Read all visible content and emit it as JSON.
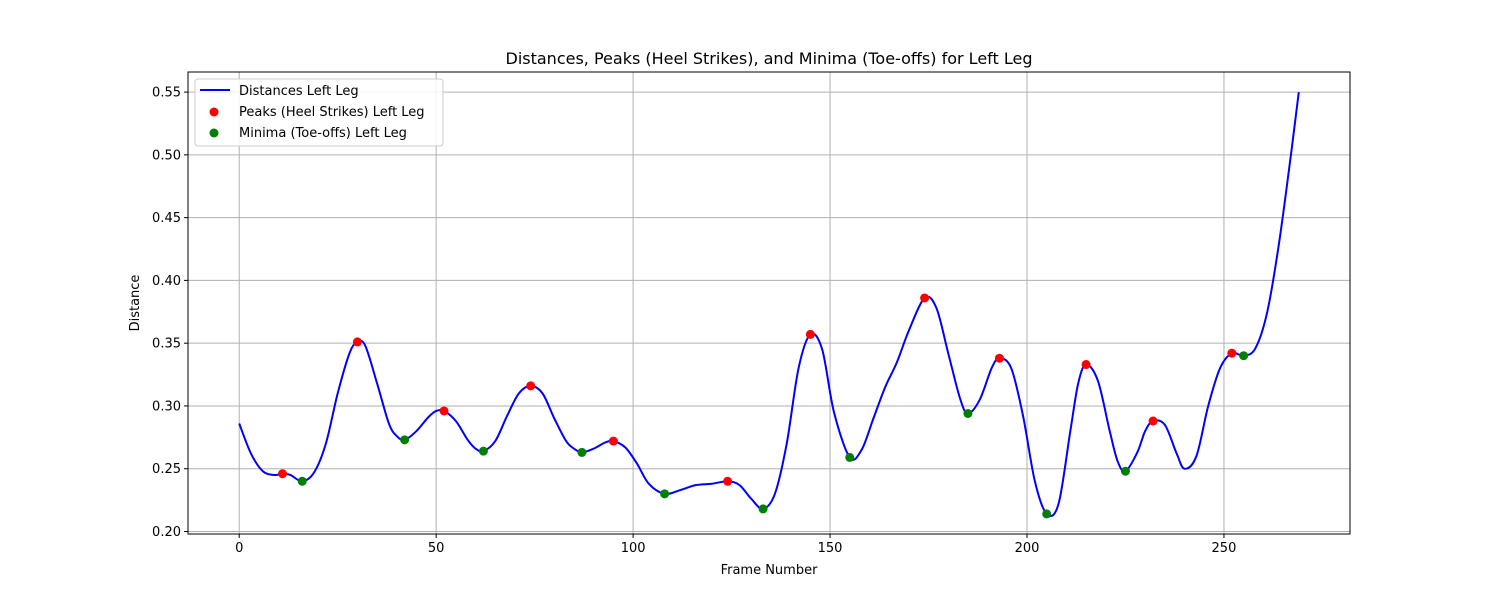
{
  "chart_data": {
    "type": "line",
    "title": "Distances, Peaks (Heel Strikes), and Minima (Toe-offs) for Left Leg",
    "xlabel": "Frame Number",
    "ylabel": "Distance",
    "xlim": [
      -13,
      282
    ],
    "ylim": [
      0.198,
      0.566
    ],
    "xticks": [
      0,
      50,
      100,
      150,
      200,
      250
    ],
    "yticks": [
      0.2,
      0.25,
      0.3,
      0.35,
      0.4,
      0.45,
      0.5,
      0.55
    ],
    "xtick_labels": [
      "0",
      "50",
      "100",
      "150",
      "200",
      "250"
    ],
    "ytick_labels": [
      "0.20",
      "0.25",
      "0.30",
      "0.35",
      "0.40",
      "0.45",
      "0.50",
      "0.55"
    ],
    "grid": true,
    "legend_position": "top-left",
    "colors": {
      "line": "#0000ff",
      "peaks": "#ff0000",
      "minima": "#008000",
      "grid": "#b0b0b0"
    },
    "series": [
      {
        "name": "Distances Left Leg",
        "kind": "line",
        "x": [
          0,
          3,
          6,
          9,
          11,
          13,
          16,
          19,
          22,
          25,
          28,
          30,
          32,
          35,
          38,
          40,
          42,
          45,
          48,
          50,
          52,
          55,
          58,
          60,
          62,
          65,
          68,
          71,
          74,
          77,
          80,
          83,
          85,
          87,
          90,
          93,
          95,
          98,
          101,
          104,
          108,
          112,
          116,
          120,
          124,
          127,
          130,
          133,
          136,
          139,
          142,
          145,
          148,
          151,
          155,
          158,
          161,
          164,
          167,
          170,
          174,
          177,
          180,
          183,
          185,
          188,
          191,
          193,
          196,
          199,
          202,
          205,
          208,
          211,
          213,
          215,
          218,
          221,
          223,
          225,
          228,
          230,
          232,
          235,
          238,
          240,
          243,
          246,
          249,
          252,
          255,
          258,
          261,
          264,
          267,
          269
        ],
        "values": [
          0.286,
          0.262,
          0.248,
          0.245,
          0.246,
          0.245,
          0.24,
          0.247,
          0.27,
          0.31,
          0.342,
          0.351,
          0.348,
          0.318,
          0.286,
          0.276,
          0.273,
          0.28,
          0.291,
          0.296,
          0.296,
          0.288,
          0.273,
          0.266,
          0.264,
          0.272,
          0.292,
          0.31,
          0.316,
          0.31,
          0.29,
          0.272,
          0.266,
          0.263,
          0.266,
          0.271,
          0.272,
          0.267,
          0.254,
          0.238,
          0.23,
          0.233,
          0.237,
          0.238,
          0.24,
          0.237,
          0.226,
          0.218,
          0.23,
          0.27,
          0.33,
          0.357,
          0.345,
          0.295,
          0.259,
          0.265,
          0.29,
          0.315,
          0.335,
          0.36,
          0.386,
          0.378,
          0.342,
          0.306,
          0.294,
          0.305,
          0.33,
          0.338,
          0.33,
          0.292,
          0.24,
          0.214,
          0.222,
          0.28,
          0.318,
          0.333,
          0.32,
          0.28,
          0.256,
          0.248,
          0.263,
          0.28,
          0.288,
          0.285,
          0.262,
          0.25,
          0.26,
          0.3,
          0.33,
          0.342,
          0.34,
          0.346,
          0.375,
          0.43,
          0.5,
          0.55
        ]
      },
      {
        "name": "Peaks (Heel Strikes) Left Leg",
        "kind": "scatter",
        "x": [
          11,
          30,
          52,
          74,
          95,
          124,
          145,
          174,
          193,
          215,
          232,
          252
        ],
        "values": [
          0.246,
          0.351,
          0.296,
          0.316,
          0.272,
          0.24,
          0.357,
          0.386,
          0.338,
          0.333,
          0.288,
          0.342
        ]
      },
      {
        "name": "Minima (Toe-offs) Left Leg",
        "kind": "scatter",
        "x": [
          16,
          42,
          62,
          87,
          108,
          133,
          155,
          185,
          205,
          225,
          255
        ],
        "values": [
          0.24,
          0.273,
          0.264,
          0.263,
          0.23,
          0.218,
          0.259,
          0.294,
          0.214,
          0.248,
          0.34
        ]
      }
    ]
  }
}
